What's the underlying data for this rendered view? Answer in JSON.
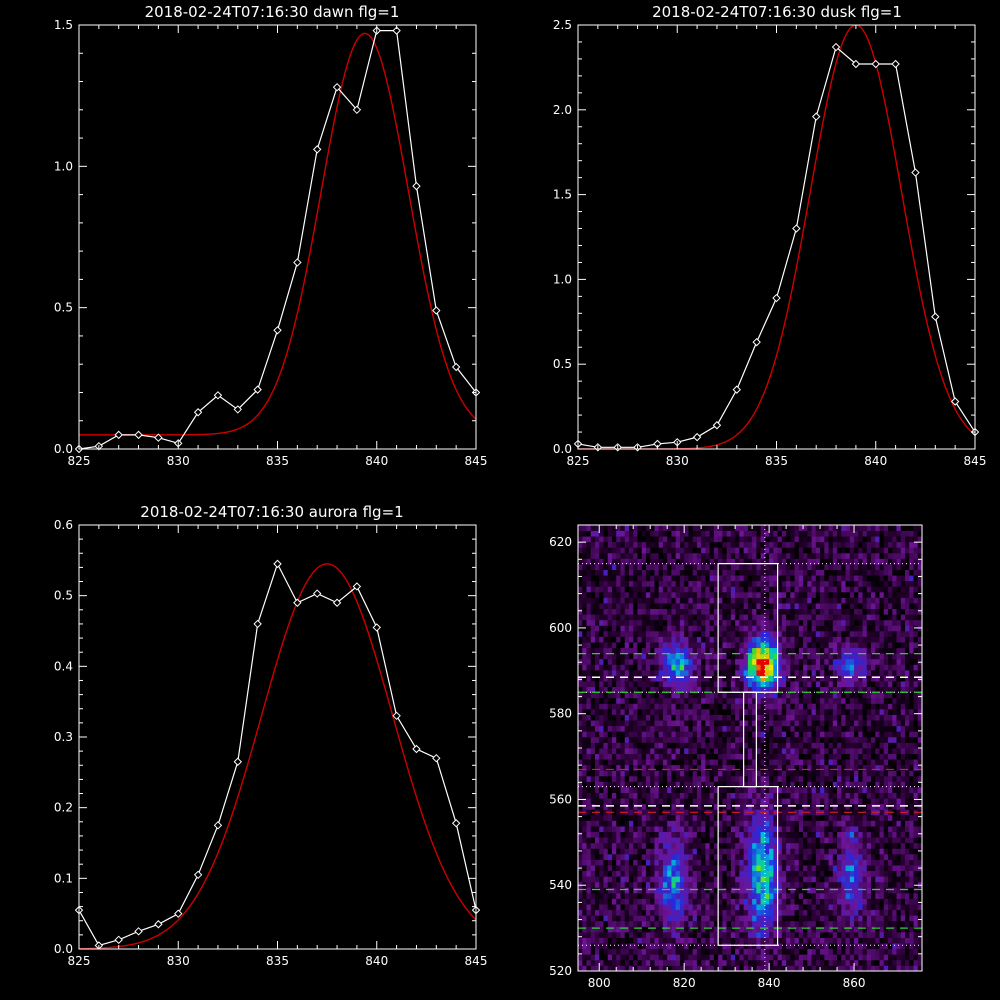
{
  "colors": {
    "background": "#000000",
    "axes": "#ffffff",
    "data_line": "#ffffff",
    "fit_line": "#cc0000",
    "green_dash": "#33cc33",
    "red_dash": "#cc2222",
    "white_dash": "#ffffff"
  },
  "chart_data": [
    {
      "type": "line",
      "title": "2018-02-24T07:16:30 dawn flg=1",
      "xlim": [
        825,
        845
      ],
      "ylim": [
        0,
        1.5
      ],
      "xticks": [
        "825",
        "830",
        "835",
        "840",
        "845"
      ],
      "yticks": [
        "0.0",
        "0.5",
        "1.0",
        "1.5"
      ],
      "xtick_values": [
        825,
        830,
        835,
        840,
        845
      ],
      "ytick_values": [
        0,
        0.5,
        1.0,
        1.5
      ],
      "series": [
        {
          "style": "line+diamond",
          "x": [
            825,
            826,
            827,
            828,
            829,
            830,
            831,
            832,
            833,
            834,
            835,
            836,
            837,
            838,
            839,
            840,
            841,
            842,
            843,
            844,
            845
          ],
          "y": [
            0.0,
            0.01,
            0.05,
            0.05,
            0.04,
            0.02,
            0.13,
            0.19,
            0.14,
            0.21,
            0.42,
            0.66,
            1.06,
            1.28,
            1.2,
            1.48,
            1.48,
            0.93,
            0.49,
            0.29,
            0.2
          ]
        },
        {
          "style": "fit",
          "gauss": {
            "baseline": 0.05,
            "amp": 1.42,
            "center": 839.4,
            "sigma": 2.2
          }
        }
      ]
    },
    {
      "type": "line",
      "title": "2018-02-24T07:16:30 dusk flg=1",
      "xlim": [
        825,
        845
      ],
      "ylim": [
        0,
        2.5
      ],
      "xticks": [
        "825",
        "830",
        "835",
        "840",
        "845"
      ],
      "yticks": [
        "0.0",
        "0.5",
        "1.0",
        "1.5",
        "2.0",
        "2.5"
      ],
      "xtick_values": [
        825,
        830,
        835,
        840,
        845
      ],
      "ytick_values": [
        0,
        0.5,
        1.0,
        1.5,
        2.0,
        2.5
      ],
      "series": [
        {
          "style": "line+diamond",
          "x": [
            825,
            826,
            827,
            828,
            829,
            830,
            831,
            832,
            833,
            834,
            835,
            836,
            837,
            838,
            839,
            840,
            841,
            842,
            843,
            844,
            845
          ],
          "y": [
            0.03,
            0.01,
            0.01,
            0.01,
            0.03,
            0.04,
            0.07,
            0.14,
            0.35,
            0.63,
            0.89,
            1.3,
            1.96,
            2.37,
            2.27,
            2.27,
            2.27,
            1.63,
            0.78,
            0.28,
            0.1
          ]
        },
        {
          "style": "fit",
          "gauss": {
            "baseline": 0.0,
            "amp": 2.5,
            "center": 839.0,
            "sigma": 2.3
          }
        }
      ]
    },
    {
      "type": "line",
      "title": "2018-02-24T07:16:30 aurora flg=1",
      "xlim": [
        825,
        845
      ],
      "ylim": [
        0,
        0.6
      ],
      "xticks": [
        "825",
        "830",
        "835",
        "840",
        "845"
      ],
      "yticks": [
        "0.0",
        "0.1",
        "0.2",
        "0.3",
        "0.4",
        "0.5",
        "0.6"
      ],
      "xtick_values": [
        825,
        830,
        835,
        840,
        845
      ],
      "ytick_values": [
        0,
        0.1,
        0.2,
        0.3,
        0.4,
        0.5,
        0.6
      ],
      "series": [
        {
          "style": "line+diamond",
          "x": [
            825,
            826,
            827,
            828,
            829,
            830,
            831,
            832,
            833,
            834,
            835,
            836,
            837,
            838,
            839,
            840,
            841,
            842,
            843,
            844,
            845
          ],
          "y": [
            0.055,
            0.005,
            0.013,
            0.025,
            0.035,
            0.05,
            0.105,
            0.175,
            0.265,
            0.46,
            0.545,
            0.49,
            0.503,
            0.49,
            0.513,
            0.455,
            0.33,
            0.283,
            0.27,
            0.178,
            0.055
          ]
        },
        {
          "style": "fit",
          "gauss": {
            "baseline": 0.0,
            "amp": 0.545,
            "center": 837.5,
            "sigma": 3.3
          }
        }
      ]
    },
    {
      "type": "heatmap",
      "title": "",
      "xlim": [
        795,
        876
      ],
      "ylim": [
        520,
        624
      ],
      "xticks": [
        "800",
        "820",
        "840",
        "860"
      ],
      "yticks": [
        "520",
        "540",
        "560",
        "580",
        "600",
        "620"
      ],
      "xtick_values": [
        800,
        820,
        840,
        860
      ],
      "ytick_values": [
        520,
        540,
        560,
        580,
        600,
        620
      ],
      "blobs": [
        {
          "x": 818,
          "y": 591,
          "sx": 2.3,
          "sy": 3.5,
          "amp": 0.55
        },
        {
          "x": 838,
          "y": 591,
          "sx": 2.5,
          "sy": 4.0,
          "amp": 1.0
        },
        {
          "x": 859,
          "y": 591,
          "sx": 2.5,
          "sy": 3.0,
          "amp": 0.35
        },
        {
          "x": 817,
          "y": 540,
          "sx": 2.3,
          "sy": 7.0,
          "amp": 0.45
        },
        {
          "x": 838,
          "y": 542,
          "sx": 2.5,
          "sy": 9.0,
          "amp": 0.6
        },
        {
          "x": 859,
          "y": 542,
          "sx": 2.0,
          "sy": 7.0,
          "amp": 0.35
        }
      ],
      "boxes": [
        {
          "x0": 828,
          "x1": 842,
          "y0": 585,
          "y1": 615
        },
        {
          "x0": 828,
          "x1": 842,
          "y0": 526,
          "y1": 563
        },
        {
          "x0": 834,
          "x1": 837,
          "y0": 563,
          "y1": 585
        }
      ],
      "vline": 839,
      "hlines_dotted": [
        615,
        585,
        563,
        526
      ],
      "hlines_green": [
        594,
        585,
        539,
        530
      ],
      "hlines_white": [
        588.5,
        558.5
      ],
      "hlines_red": [
        567,
        557
      ]
    }
  ]
}
